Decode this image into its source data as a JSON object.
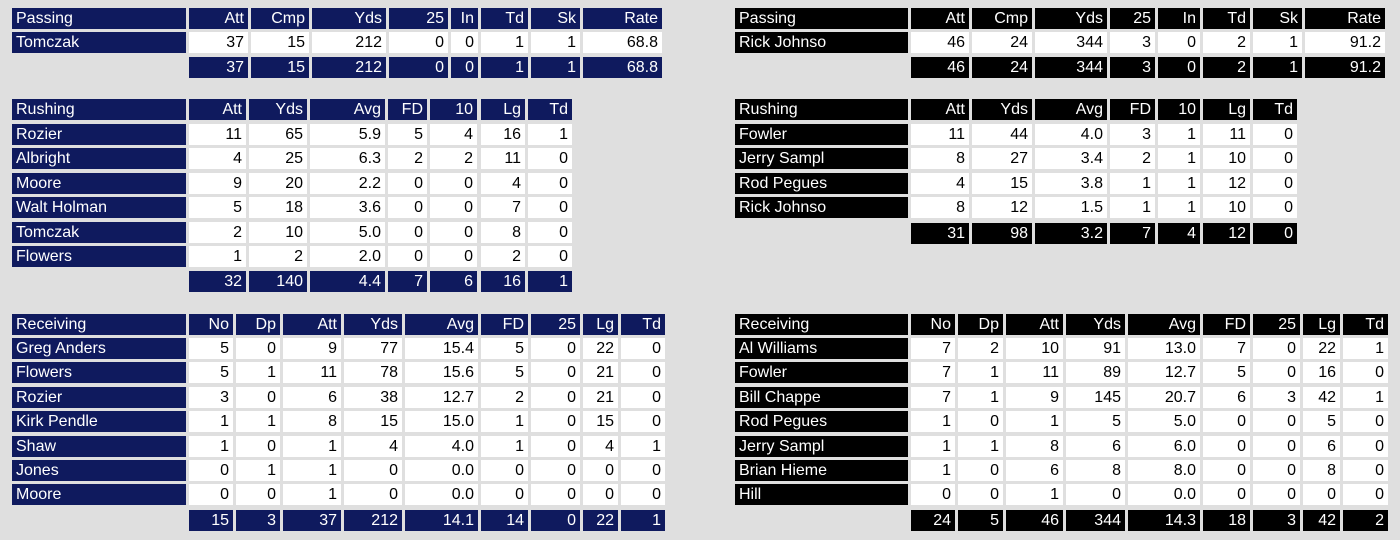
{
  "home": {
    "passing": {
      "headers": [
        "Passing",
        "Att",
        "Cmp",
        "Yds",
        "25",
        "In",
        "Td",
        "Sk",
        "Rate"
      ],
      "rows": [
        [
          "Tomczak",
          "37",
          "15",
          "212",
          "0",
          "0",
          "1",
          "1",
          "68.8"
        ]
      ],
      "totals": [
        "37",
        "15",
        "212",
        "0",
        "0",
        "1",
        "1",
        "68.8"
      ]
    },
    "rushing": {
      "headers": [
        "Rushing",
        "Att",
        "Yds",
        "Avg",
        "FD",
        "10",
        "Lg",
        "Td"
      ],
      "rows": [
        [
          "Rozier",
          "11",
          "65",
          "5.9",
          "5",
          "4",
          "16",
          "1"
        ],
        [
          "Albright",
          "4",
          "25",
          "6.3",
          "2",
          "2",
          "11",
          "0"
        ],
        [
          "Moore",
          "9",
          "20",
          "2.2",
          "0",
          "0",
          "4",
          "0"
        ],
        [
          "Walt Holman",
          "5",
          "18",
          "3.6",
          "0",
          "0",
          "7",
          "0"
        ],
        [
          "Tomczak",
          "2",
          "10",
          "5.0",
          "0",
          "0",
          "8",
          "0"
        ],
        [
          "Flowers",
          "1",
          "2",
          "2.0",
          "0",
          "0",
          "2",
          "0"
        ]
      ],
      "totals": [
        "32",
        "140",
        "4.4",
        "7",
        "6",
        "16",
        "1"
      ]
    },
    "receiving": {
      "headers": [
        "Receiving",
        "No",
        "Dp",
        "Att",
        "Yds",
        "Avg",
        "FD",
        "25",
        "Lg",
        "Td"
      ],
      "rows": [
        [
          "Greg Anders",
          "5",
          "0",
          "9",
          "77",
          "15.4",
          "5",
          "0",
          "22",
          "0"
        ],
        [
          "Flowers",
          "5",
          "1",
          "11",
          "78",
          "15.6",
          "5",
          "0",
          "21",
          "0"
        ],
        [
          "Rozier",
          "3",
          "0",
          "6",
          "38",
          "12.7",
          "2",
          "0",
          "21",
          "0"
        ],
        [
          "Kirk Pendle",
          "1",
          "1",
          "8",
          "15",
          "15.0",
          "1",
          "0",
          "15",
          "0"
        ],
        [
          "Shaw",
          "1",
          "0",
          "1",
          "4",
          "4.0",
          "1",
          "0",
          "4",
          "1"
        ],
        [
          "Jones",
          "0",
          "1",
          "1",
          "0",
          "0.0",
          "0",
          "0",
          "0",
          "0"
        ],
        [
          "Moore",
          "0",
          "0",
          "1",
          "0",
          "0.0",
          "0",
          "0",
          "0",
          "0"
        ]
      ],
      "totals": [
        "15",
        "3",
        "37",
        "212",
        "14.1",
        "14",
        "0",
        "22",
        "1"
      ]
    }
  },
  "away": {
    "passing": {
      "headers": [
        "Passing",
        "Att",
        "Cmp",
        "Yds",
        "25",
        "In",
        "Td",
        "Sk",
        "Rate"
      ],
      "rows": [
        [
          "Rick Johnso",
          "46",
          "24",
          "344",
          "3",
          "0",
          "2",
          "1",
          "91.2"
        ]
      ],
      "totals": [
        "46",
        "24",
        "344",
        "3",
        "0",
        "2",
        "1",
        "91.2"
      ]
    },
    "rushing": {
      "headers": [
        "Rushing",
        "Att",
        "Yds",
        "Avg",
        "FD",
        "10",
        "Lg",
        "Td"
      ],
      "rows": [
        [
          "Fowler",
          "11",
          "44",
          "4.0",
          "3",
          "1",
          "11",
          "0"
        ],
        [
          "Jerry Sampl",
          "8",
          "27",
          "3.4",
          "2",
          "1",
          "10",
          "0"
        ],
        [
          "Rod Pegues",
          "4",
          "15",
          "3.8",
          "1",
          "1",
          "12",
          "0"
        ],
        [
          "Rick Johnso",
          "8",
          "12",
          "1.5",
          "1",
          "1",
          "10",
          "0"
        ]
      ],
      "totals": [
        "31",
        "98",
        "3.2",
        "7",
        "4",
        "12",
        "0"
      ]
    },
    "receiving": {
      "headers": [
        "Receiving",
        "No",
        "Dp",
        "Att",
        "Yds",
        "Avg",
        "FD",
        "25",
        "Lg",
        "Td"
      ],
      "rows": [
        [
          "Al Williams",
          "7",
          "2",
          "10",
          "91",
          "13.0",
          "7",
          "0",
          "22",
          "1"
        ],
        [
          "Fowler",
          "7",
          "1",
          "11",
          "89",
          "12.7",
          "5",
          "0",
          "16",
          "0"
        ],
        [
          "Bill Chappe",
          "7",
          "1",
          "9",
          "145",
          "20.7",
          "6",
          "3",
          "42",
          "1"
        ],
        [
          "Rod Pegues",
          "1",
          "0",
          "1",
          "5",
          "5.0",
          "0",
          "0",
          "5",
          "0"
        ],
        [
          "Jerry Sampl",
          "1",
          "1",
          "8",
          "6",
          "6.0",
          "0",
          "0",
          "6",
          "0"
        ],
        [
          "Brian Hieme",
          "1",
          "0",
          "6",
          "8",
          "8.0",
          "0",
          "0",
          "8",
          "0"
        ],
        [
          "Hill",
          "0",
          "0",
          "1",
          "0",
          "0.0",
          "0",
          "0",
          "0",
          "0"
        ]
      ],
      "totals": [
        "24",
        "5",
        "46",
        "344",
        "14.3",
        "18",
        "3",
        "42",
        "2"
      ]
    }
  }
}
